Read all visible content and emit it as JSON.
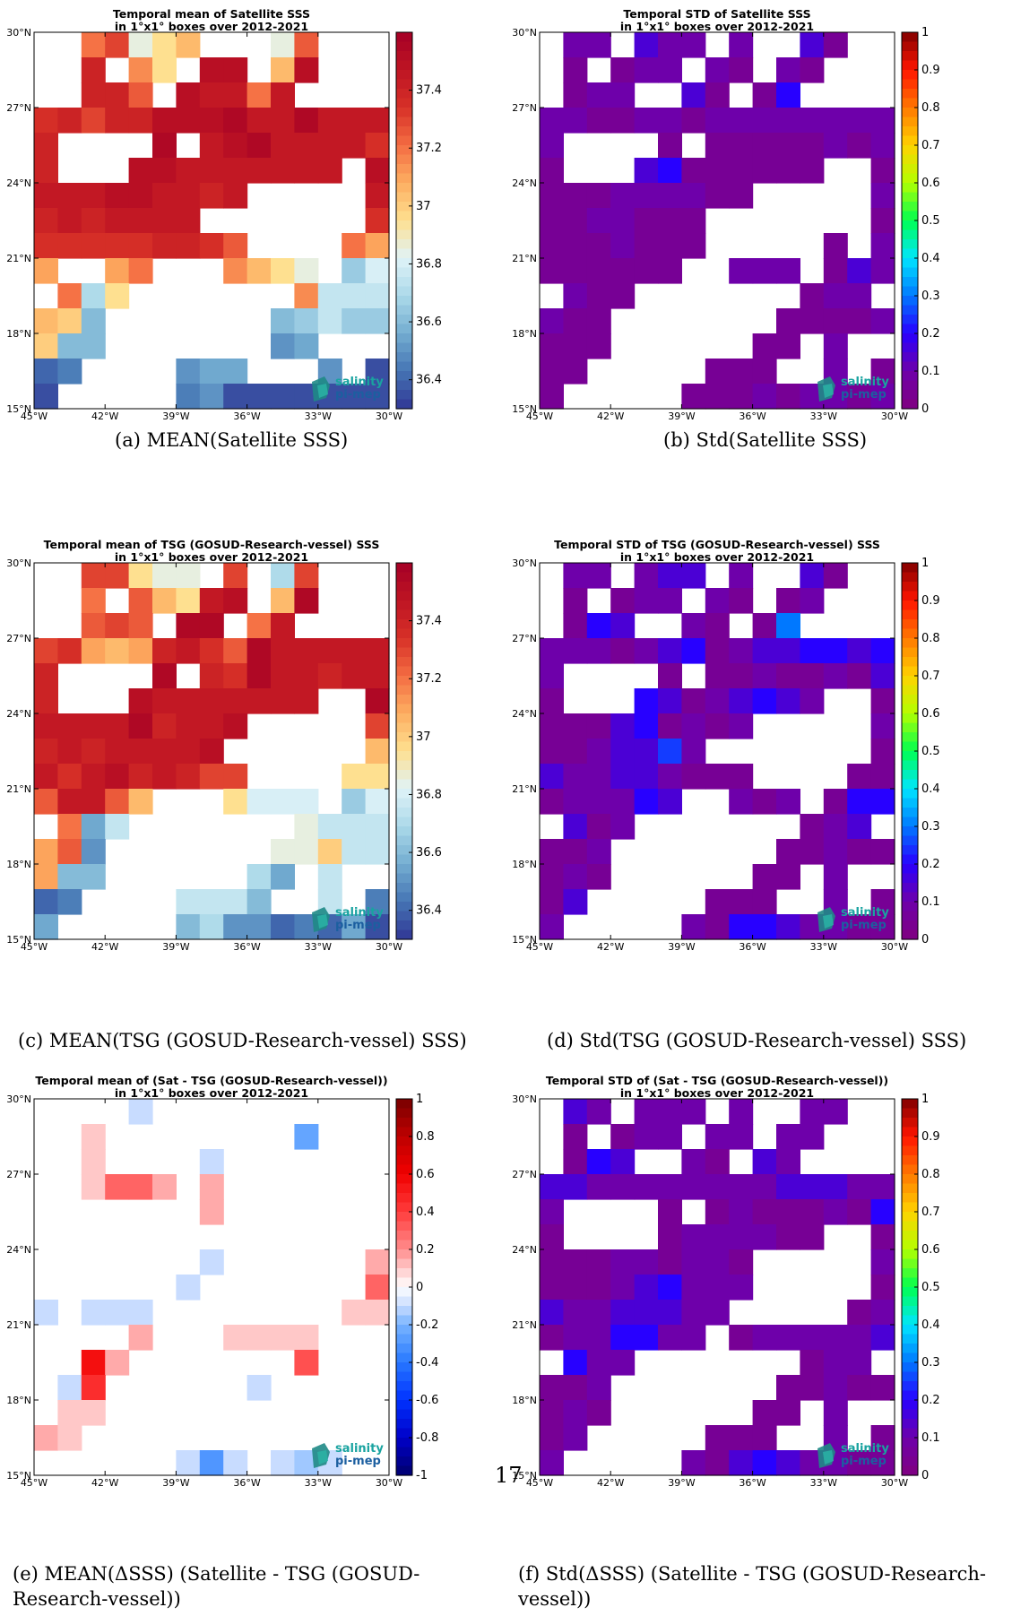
{
  "page_number": "17",
  "chart_data": [
    {
      "id": "a",
      "type": "heatmap",
      "title": "Temporal mean of Satellite SSS",
      "subtitle": "in 1°x1° boxes over 2012-2021",
      "caption": "(a) MEAN(Satellite SSS)",
      "colormap": "RdYlBu_r",
      "clim": [
        36.3,
        37.6
      ],
      "cb_ticks": [
        "37.4",
        "37.2",
        "37",
        "36.8",
        "36.6",
        "36.4"
      ],
      "cb_tick_values": [
        37.4,
        37.2,
        37.0,
        36.8,
        36.6,
        36.4
      ],
      "logo": [
        "salinity",
        "pi-mep"
      ],
      "grid": [
        ".,.,37.2,37.3,36.85,36.95,37.05,.,.,.,36.85,37.25,.,.,.",
        ".,.,37.4,.,37.15,36.95,.,37.5,37.5,.,37.05,37.5,.,.,.",
        ".,.,37.4,37.4,37.25,.,37.5,37.45,37.45,37.2,37.45,.,.,.,.",
        "37.35,37.4,37.3,37.4,37.4,37.5,37.5,37.5,37.55,37.45,37.45,37.55,37.45,37.45,37.45",
        "37.4,.,.,.,.,37.55,.,37.45,37.5,37.55,37.45,37.45,37.45,37.45,37.35",
        "37.4,.,.,.,37.5,37.5,37.45,37.45,37.45,37.45,37.45,37.45,37.45,.,37.5",
        "37.45,37.45,37.45,37.5,37.5,37.45,37.45,37.4,37.45,.,.,.,.,.,37.45",
        "37.4,37.45,37.4,37.45,37.45,37.45,37.45,.,.,.,.,.,.,.,37.35",
        "37.35,37.35,37.35,37.35,37.35,37.4,37.4,37.35,37.25,.,.,.,.,37.2,37.1",
        "37.1,.,.,37.1,37.2,.,.,.,37.15,37.05,36.95,36.85,.,36.65,36.8",
        ".,37.2,36.7,36.95,.,.,.,.,.,.,.,37.15,36.75,36.75,36.75",
        "37.05,37.0,36.6,.,.,.,.,.,.,.,36.6,36.65,36.75,36.65,36.65",
        "37.0,36.6,36.6,.,.,.,.,.,.,.,36.5,36.55,.,.,.",
        "36.4,36.45,.,.,.,.,36.5,36.55,36.55,.,.,.,36.5,.,36.35",
        "36.35,.,.,.,.,.,36.45,36.5,36.35,36.35,36.35,36.35,36.35,36.35,36.35"
      ]
    },
    {
      "id": "b",
      "type": "heatmap",
      "title": "Temporal STD of Satellite SSS",
      "subtitle": "in 1°x1° boxes over 2012-2021",
      "caption": "(b) Std(Satellite SSS)",
      "colormap": "jet_std",
      "clim": [
        0,
        1
      ],
      "cb_ticks": [
        "1",
        "0.9",
        "0.8",
        "0.7",
        "0.6",
        "0.5",
        "0.4",
        "0.3",
        "0.2",
        "0.1",
        "0"
      ],
      "cb_tick_values": [
        1,
        0.9,
        0.8,
        0.7,
        0.6,
        0.5,
        0.4,
        0.3,
        0.2,
        0.1,
        0
      ],
      "logo": [
        "salinity",
        "pi-mep"
      ],
      "grid": [
        ".,0.1,0.1,.,0.15,0.1,0.1,.,0.1,.,.,0.15,0.05,.,.",
        ".,0.05,.,0.05,0.1,0.1,.,0.1,0.05,.,0.1,0.05,.,.,.",
        ".,0.05,0.1,0.1,.,.,0.15,0.05,.,0.05,0.2,.,.,.,.",
        "0.1,0.1,0.05,0.05,0.1,0.1,0.05,0.1,0.1,0.1,0.1,0.1,0.1,0.1,0.1",
        "0.1,.,.,.,.,0.05,.,0.05,0.05,0.05,0.05,0.05,0.1,0.05,0.1",
        "0.05,.,.,.,0.15,0.2,0.05,0.05,0.05,0.05,0.05,0.05,.,.,0.05",
        "0.05,0.05,0.05,0.1,0.1,0.1,0.1,0.05,0.05,.,.,.,.,.,0.1",
        "0.05,0.05,0.1,0.1,0.05,0.05,0.05,.,.,.,.,.,.,.,0.05",
        "0.05,0.05,0.05,0.1,0.05,0.05,0.05,.,.,.,.,.,0.05,.,0.1",
        "0.05,0.05,0.05,0.05,0.05,0.05,.,.,0.1,0.1,0.1,.,0.05,0.15,0.1",
        ".,0.1,0.05,0.05,.,.,.,.,.,.,.,0.05,0.1,0.1,.",
        "0.1,0.05,0.05,.,.,.,.,.,.,.,0.05,0.05,0.05,0.05,0.1",
        "0.05,0.05,0.05,.,.,.,.,.,.,0.05,0.05,.,0.1,.,.",
        "0.05,0.05,.,.,.,.,.,0.05,0.05,0.05,.,.,0.1,.,0.05",
        "0.05,.,.,.,.,.,0.05,0.05,0.05,0.1,0.05,0.1,0.1,0.05,0.1"
      ]
    },
    {
      "id": "c",
      "type": "heatmap",
      "title": "Temporal mean of TSG (GOSUD-Research-vessel) SSS",
      "subtitle": "in 1°x1° boxes over 2012-2021",
      "caption": "(c) MEAN(TSG (GOSUD-Research-vessel) SSS)",
      "colormap": "RdYlBu_r",
      "clim": [
        36.3,
        37.6
      ],
      "cb_ticks": [
        "37.4",
        "37.2",
        "37",
        "36.8",
        "36.6",
        "36.4"
      ],
      "cb_tick_values": [
        37.4,
        37.2,
        37.0,
        36.8,
        36.6,
        36.4
      ],
      "logo": [
        "salinity",
        "pi-mep"
      ],
      "grid": [
        ".,.,37.3,37.3,36.95,36.85,36.85,.,37.3,.,36.7,37.3,.,.,.",
        ".,.,37.2,.,37.25,37.05,36.95,37.45,37.5,.,37.05,37.55,.,.,.",
        ".,.,37.25,37.3,37.25,.,37.55,37.55,.,37.2,37.45,.,.,.,.",
        "37.3,37.35,37.1,37.05,37.1,37.4,37.45,37.35,37.25,37.55,37.45,37.45,37.45,37.45,37.45",
        "37.4,.,.,.,.,37.55,.,37.4,37.35,37.55,37.45,37.45,37.4,37.45,37.45",
        "37.4,.,.,.,37.5,37.45,37.45,37.45,37.45,37.45,37.45,37.45,.,.,37.55",
        "37.45,37.45,37.45,37.45,37.55,37.4,37.45,37.45,37.5,.,.,.,.,.,37.3",
        "37.4,37.45,37.4,37.45,37.45,37.45,37.45,37.5,.,.,.,.,.,.,37.05",
        "37.45,37.35,37.45,37.5,37.4,37.45,37.4,37.3,37.3,.,.,.,.,36.95,36.95",
        "37.25,37.45,37.45,37.25,37.05,.,.,.,36.95,36.8,36.8,36.8,.,36.65,36.8",
        ".,37.2,36.55,36.75,.,.,.,.,.,.,.,36.85,36.75,36.75,36.75",
        "37.1,37.25,36.5,.,.,.,.,.,.,.,36.85,36.85,37.0,36.75,36.75",
        "37.1,36.6,36.6,.,.,.,.,.,.,36.7,36.55,.,36.75,.,.",
        "36.4,36.45,.,.,.,.,36.75,36.75,36.75,36.6,.,.,36.75,.,36.45",
        "36.55,.,.,.,.,.,36.6,36.7,36.5,36.5,36.4,36.45,36.4,36.55,36.35"
      ]
    },
    {
      "id": "d",
      "type": "heatmap",
      "title": "Temporal STD of TSG (GOSUD-Research-vessel) SSS",
      "subtitle": "in 1°x1° boxes over 2012-2021",
      "caption": "(d) Std(TSG (GOSUD-Research-vessel) SSS)",
      "colormap": "jet_std",
      "clim": [
        0,
        1
      ],
      "cb_ticks": [
        "1",
        "0.9",
        "0.8",
        "0.7",
        "0.6",
        "0.5",
        "0.4",
        "0.3",
        "0.2",
        "0.1",
        "0"
      ],
      "cb_tick_values": [
        1,
        0.9,
        0.8,
        0.7,
        0.6,
        0.5,
        0.4,
        0.3,
        0.2,
        0.1,
        0
      ],
      "logo": [
        "salinity",
        "pi-mep"
      ],
      "grid": [
        ".,0.1,0.1,.,0.1,0.15,0.15,.,0.1,.,.,0.15,0.05,.,.",
        ".,0.05,.,0.05,0.1,0.1,.,0.1,0.05,.,0.05,0.1,.,.,.",
        ".,0.05,0.2,0.15,.,.,0.1,0.05,.,0.05,0.3,.,.,.,.",
        "0.1,0.1,0.1,0.05,0.1,0.15,0.2,0.05,0.1,0.15,0.15,0.2,0.2,0.15,0.2",
        "0.1,.,.,.,.,0.05,.,0.05,0.05,0.1,0.05,0.05,0.1,0.05,0.15",
        "0.05,.,.,.,0.2,0.15,0.05,0.1,0.15,0.2,0.15,0.1,.,.,0.05",
        "0.05,0.05,0.05,0.15,0.2,0.05,0.1,0.05,0.1,.,.,.,.,.,0.1",
        "0.05,0.05,0.1,0.15,0.15,0.25,0.1,.,.,.,.,.,.,.,0.05",
        "0.15,0.1,0.1,0.15,0.15,0.1,0.05,0.05,0.05,.,.,.,.,0.05,0.05",
        "0.05,0.1,0.1,0.1,0.2,0.15,.,.,0.1,0.05,0.1,.,0.05,0.2,0.2",
        ".,0.15,0.05,0.1,.,.,.,.,.,.,.,0.05,0.1,0.15,.",
        "0.05,0.05,0.1,.,.,.,.,.,.,.,0.05,0.05,0.1,0.05,0.05",
        "0.05,0.1,0.05,.,.,.,.,.,.,0.05,0.05,.,0.1,.,.",
        "0.05,0.15,.,.,.,.,.,0.05,0.05,0.05,.,.,0.1,.,0.05",
        "0.1,.,.,.,.,.,0.1,0.05,0.2,0.2,0.15,0.1,0.1,0.05,0.05"
      ]
    },
    {
      "id": "e",
      "type": "heatmap",
      "title": "Temporal mean of (Sat - TSG (GOSUD-Research-vessel))",
      "subtitle": "in 1°x1° boxes over 2012-2021",
      "caption_lines": [
        "(e) MEAN(ΔSSS) (Satellite - TSG (GOSUD-",
        "Research-vessel))"
      ],
      "colormap": "bwr",
      "clim": [
        -1,
        1
      ],
      "cb_ticks": [
        "1",
        "0.8",
        "0.6",
        "0.4",
        "0.2",
        "0",
        "-0.2",
        "-0.4",
        "-0.6",
        "-0.8",
        "-1"
      ],
      "cb_tick_values": [
        1,
        0.8,
        0.6,
        0.4,
        0.2,
        0,
        -0.2,
        -0.4,
        -0.6,
        -0.8,
        -1
      ],
      "logo": [
        "salinity",
        "pi-mep"
      ],
      "grid": [
        ".,.,.,.,-0.1,.,.,.,.,.,.,.,.,.,.",
        ".,.,0.1,.,.,.,.,.,.,.,.,-0.25,.,.,.",
        ".,.,0.1,.,.,.,.,-0.1,.,.,.,.,.,.,.",
        ".,.,0.1,0.3,0.3,0.15,.,0.15,.,.,.,.,.,.,.",
        ".,.,.,.,.,.,.,0.15,.,.,.,.,.,.,.",
        ".,.,.,.,.,.,.,.,.,.,.,.,.,.,.",
        ".,.,.,.,.,.,.,-0.1,.,.,.,.,.,.,0.15",
        ".,.,.,.,.,.,-0.1,.,.,.,.,.,.,.,0.3",
        "-0.1,.,-0.1,-0.1,-0.1,.,.,.,.,.,.,.,.,0.1,0.1",
        ".,.,.,.,0.15,.,.,.,0.1,0.1,0.1,0.1,.,.,.",
        ".,.,0.55,0.15,.,.,.,.,.,.,.,0.35,.,.,.",
        ".,-0.1,0.45,.,.,.,.,.,.,-0.1,.,.,.,.,.",
        ".,0.1,0.1,.,.,.,.,.,.,.,.,.,.,.,.",
        "0.15,0.1,.,.,.,.,.,.,.,.,.,.,.,.,.",
        ".,.,.,.,.,.,-0.1,-0.3,-0.1,.,-0.1,-0.15,-0.1,.,."
      ]
    },
    {
      "id": "f",
      "type": "heatmap",
      "title": "Temporal STD of (Sat - TSG (GOSUD-Research-vessel))",
      "subtitle": "in 1°x1° boxes over 2012-2021",
      "caption_lines": [
        "(f) Std(ΔSSS) (Satellite - TSG (GOSUD-Research-",
        "vessel))"
      ],
      "colormap": "jet_std",
      "clim": [
        0,
        1
      ],
      "cb_ticks": [
        "1",
        "0.9",
        "0.8",
        "0.7",
        "0.6",
        "0.5",
        "0.4",
        "0.3",
        "0.2",
        "0.1",
        "0"
      ],
      "cb_tick_values": [
        1,
        0.9,
        0.8,
        0.7,
        0.6,
        0.5,
        0.4,
        0.3,
        0.2,
        0.1,
        0
      ],
      "logo": [
        "salinity",
        "pi-mep"
      ],
      "grid": [
        ".,0.15,0.1,.,0.1,0.1,0.1,.,0.1,.,.,0.1,0.1,.,.",
        ".,0.05,.,0.05,0.1,0.1,.,0.1,0.1,.,0.1,0.1,.,.,.",
        ".,0.05,0.2,0.15,.,.,0.1,0.05,.,0.15,0.1,.,.,.,.",
        "0.15,0.15,0.1,0.1,0.1,0.1,0.1,0.1,0.1,0.1,0.15,0.15,0.15,0.1,0.1",
        "0.1,.,.,.,.,0.05,.,0.05,0.1,0.05,0.05,0.05,0.1,0.05,0.2",
        "0.05,.,.,.,.,0.05,0.1,0.1,0.1,0.1,0.05,0.05,.,.,0.05",
        "0.05,0.05,0.05,0.1,0.1,0.05,0.1,0.1,0.05,.,.,.,.,.,0.1",
        "0.05,0.05,0.05,0.1,0.15,0.2,0.1,0.1,0.1,.,.,.,.,.,0.05",
        "0.15,0.1,0.1,0.15,0.15,0.15,0.1,0.1,.,.,.,.,.,0.05,0.1",
        "0.05,0.1,0.1,0.2,0.2,0.1,0.1,.,0.05,0.1,0.1,0.1,0.1,0.1,0.15",
        ".,0.2,0.1,0.1,.,.,.,.,.,.,.,0.05,0.1,0.1,.",
        "0.05,0.05,0.1,.,.,.,.,.,.,.,0.05,0.05,0.1,0.05,0.05",
        "0.05,0.1,0.05,.,.,.,.,.,.,0.05,0.05,.,0.1,.,.",
        "0.05,0.1,.,.,.,.,.,0.05,0.05,0.05,.,.,0.1,.,0.05",
        "0.1,.,.,.,.,.,0.1,0.05,0.15,0.2,0.15,0.1,0.1,0.05,0.05"
      ]
    }
  ],
  "axes": {
    "lat_ticks": [
      "30°N",
      "27°N",
      "24°N",
      "21°N",
      "18°N",
      "15°N"
    ],
    "lon_ticks": [
      "45°W",
      "42°W",
      "39°W",
      "36°W",
      "33°W",
      "30°W"
    ],
    "lat_range": [
      15,
      30
    ],
    "lon_range": [
      -45,
      -30
    ]
  }
}
